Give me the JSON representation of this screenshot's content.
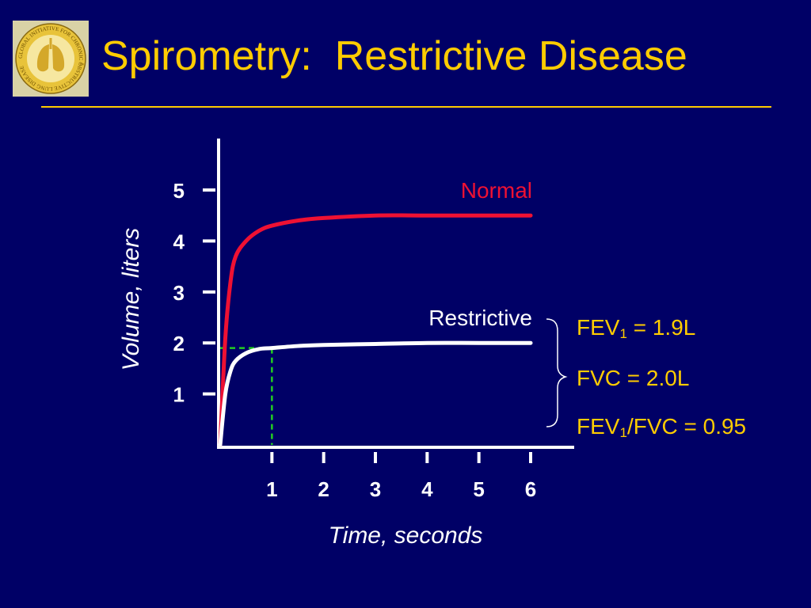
{
  "slide": {
    "title": "Spirometry:  Restrictive Disease",
    "logo_text": "GLOBAL INITIATIVE FOR CHRONIC OBSTRUCTIVE LUNG DISEASE",
    "logo_mark": "™"
  },
  "stats": {
    "fev1": {
      "label": "FEV",
      "sub": "1",
      "value": " = 1.9L"
    },
    "fvc": {
      "text": "FVC = 2.0L"
    },
    "ratio": {
      "label": "FEV",
      "sub": "1",
      "value": "/FVC = 0.95"
    }
  },
  "chart_data": {
    "type": "line",
    "xlabel": "Time, seconds",
    "ylabel": "Volume, liters",
    "xlim": [
      0,
      6
    ],
    "ylim": [
      0,
      5
    ],
    "x_ticks": [
      1,
      2,
      3,
      4,
      5,
      6
    ],
    "x_tick_labels": [
      "1",
      "2",
      "3",
      "4",
      "5",
      "6"
    ],
    "y_ticks": [
      1,
      2,
      3,
      4,
      5
    ],
    "y_tick_labels": [
      "1",
      "2",
      "3",
      "4",
      "5"
    ],
    "grid": false,
    "series": [
      {
        "name": "Normal",
        "color": "#EE1133",
        "x": [
          0,
          0.1,
          0.2,
          0.3,
          0.5,
          0.75,
          1,
          1.5,
          2,
          3,
          4,
          5,
          6
        ],
        "y": [
          0,
          2.1,
          3.2,
          3.7,
          4.0,
          4.2,
          4.3,
          4.4,
          4.45,
          4.5,
          4.5,
          4.5,
          4.5
        ]
      },
      {
        "name": "Restrictive",
        "color": "#FFFFFF",
        "x": [
          0,
          0.1,
          0.2,
          0.3,
          0.5,
          0.75,
          1,
          1.5,
          2,
          3,
          4,
          5,
          6
        ],
        "y": [
          0,
          1.0,
          1.45,
          1.65,
          1.8,
          1.88,
          1.9,
          1.94,
          1.96,
          1.98,
          2.0,
          2.0,
          2.0
        ]
      }
    ],
    "annotation": {
      "x": 1,
      "y": 1.9,
      "color": "#22CC22"
    }
  }
}
